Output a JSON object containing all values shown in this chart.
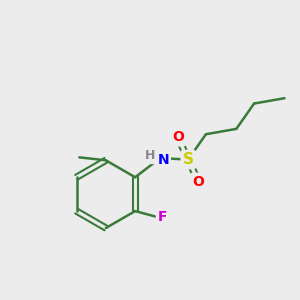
{
  "background_color": "#ececec",
  "bond_color": "#3a7a3a",
  "atom_colors": {
    "S": "#cccc00",
    "O": "#ff0000",
    "N": "#0000ff",
    "F": "#cc00cc",
    "H": "#888888",
    "C": "#3a7a3a"
  },
  "figsize": [
    3.0,
    3.0
  ],
  "dpi": 100
}
